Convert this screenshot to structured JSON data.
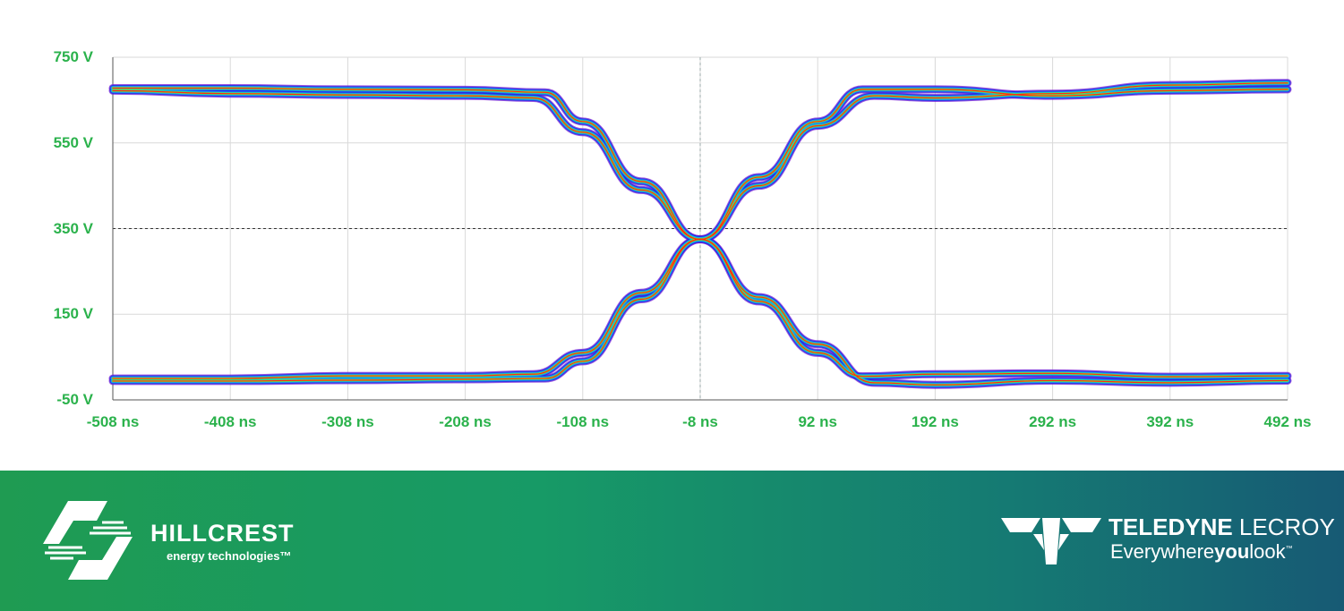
{
  "chart_data": {
    "type": "line",
    "subtype": "eye-diagram",
    "x_unit": "ns",
    "y_unit": "V",
    "xlim": [
      -508,
      492
    ],
    "ylim": [
      -50,
      750
    ],
    "grid": true,
    "x_ticks": [
      -508,
      -408,
      -308,
      -208,
      -108,
      -8,
      92,
      192,
      292,
      392,
      492
    ],
    "y_ticks": [
      750,
      550,
      350,
      150,
      -50
    ],
    "x_tick_labels": [
      "-508 ns",
      "-408 ns",
      "-308 ns",
      "-208 ns",
      "-108 ns",
      "-8 ns",
      "92 ns",
      "192 ns",
      "292 ns",
      "392 ns",
      "492 ns"
    ],
    "y_tick_labels": [
      "750 V",
      "550 V",
      "350 V",
      "150 V",
      "-50 V"
    ],
    "reference_lines": {
      "y": 350,
      "x": -8
    },
    "crossing_point": {
      "x": -8,
      "y": 325
    },
    "color_scale": [
      "#7a1fd6",
      "#1a2fe0",
      "#1e90ff",
      "#19d4c8",
      "#2ee05a",
      "#d4e81a",
      "#ff2a10"
    ],
    "series": [
      {
        "x": [
          -508,
          -408,
          -308,
          -208,
          -140,
          -108,
          -58,
          -8
        ],
        "y": [
          678,
          678,
          675,
          674,
          668,
          600,
          460,
          325
        ]
      },
      {
        "x": [
          -508,
          -408,
          -308,
          -208,
          -140,
          -108,
          -58,
          -8
        ],
        "y": [
          -6,
          -6,
          -4,
          -2,
          0,
          40,
          185,
          325
        ]
      },
      {
        "x": [
          -8,
          42,
          92,
          130,
          192,
          292,
          392,
          492
        ],
        "y": [
          325,
          470,
          600,
          675,
          675,
          660,
          672,
          675
        ]
      },
      {
        "x": [
          -8,
          42,
          92,
          130,
          192,
          292,
          392,
          492
        ],
        "y": [
          325,
          180,
          60,
          5,
          10,
          12,
          4,
          6
        ]
      },
      {
        "x": [
          -508,
          -408,
          -308,
          -208,
          -150,
          -108,
          -58,
          -8
        ],
        "y": [
          672,
          665,
          662,
          660,
          655,
          575,
          440,
          325
        ]
      },
      {
        "x": [
          -508,
          -408,
          -308,
          -208,
          -150,
          -108,
          -58,
          -8
        ],
        "y": [
          0,
          0,
          6,
          6,
          10,
          60,
          200,
          325
        ]
      },
      {
        "x": [
          -8,
          42,
          92,
          140,
          192,
          292,
          392,
          492
        ],
        "y": [
          325,
          450,
          590,
          660,
          655,
          665,
          685,
          690
        ]
      },
      {
        "x": [
          -8,
          42,
          92,
          140,
          192,
          292,
          392,
          492
        ],
        "y": [
          325,
          190,
          80,
          -10,
          -15,
          -5,
          -10,
          -5
        ]
      }
    ]
  },
  "footer": {
    "left_brand": {
      "name": "HILLCREST",
      "tagline": "energy technologies™",
      "icon": "hillcrest-logo-icon"
    },
    "right_brand": {
      "name_bold": "TELEDYNE",
      "name_light": " LECROY",
      "tagline_pre": "Everywhere",
      "tagline_bold": "you",
      "tagline_post": "look",
      "tagline_mark": "™",
      "icon": "teledyne-logo-icon"
    }
  },
  "colors": {
    "tick_label": "#2bb24c",
    "grid": "#d9d9d9",
    "axis": "#555555",
    "footer_start": "#1f9b52",
    "footer_end": "#175a74"
  }
}
